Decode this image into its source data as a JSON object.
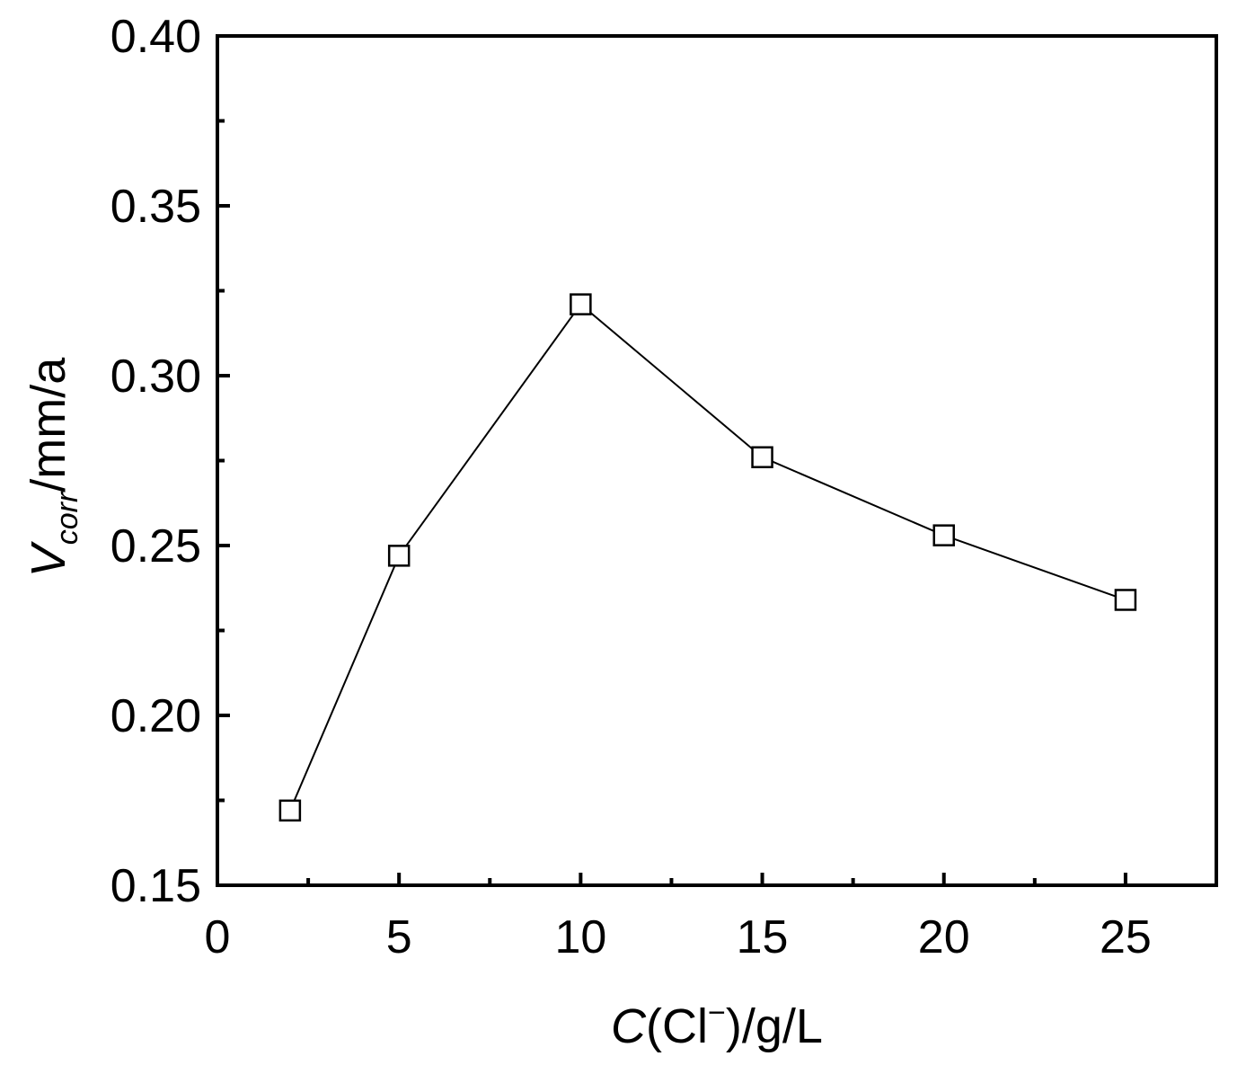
{
  "chart_data": {
    "type": "line",
    "x": [
      2,
      5,
      10,
      15,
      20,
      25
    ],
    "series": [
      {
        "values": [
          0.172,
          0.247,
          0.321,
          0.276,
          0.253,
          0.234
        ],
        "marker": "open-square",
        "color": "#000000"
      }
    ],
    "xlim": [
      0,
      27.5
    ],
    "ylim": [
      0.15,
      0.4
    ],
    "x_ticks": [
      0,
      5,
      10,
      15,
      20,
      25
    ],
    "x_tick_labels": [
      "0",
      "5",
      "10",
      "15",
      "20",
      "25"
    ],
    "x_minor_ticks": [
      2.5,
      7.5,
      12.5,
      17.5,
      22.5
    ],
    "y_ticks": [
      0.15,
      0.2,
      0.25,
      0.3,
      0.35,
      0.4
    ],
    "y_tick_labels": [
      "0.15",
      "0.20",
      "0.25",
      "0.30",
      "0.35",
      "0.40"
    ],
    "y_minor_ticks": [
      0.175,
      0.225,
      0.275,
      0.325,
      0.375
    ],
    "xlabel": {
      "main": "C",
      "paren": "(Cl",
      "sup": "−",
      "rest": ")/g/L"
    },
    "ylabel": {
      "main": "V",
      "sub": "corr",
      "rest": "/mm/a"
    },
    "grid": false,
    "legend": "none"
  }
}
